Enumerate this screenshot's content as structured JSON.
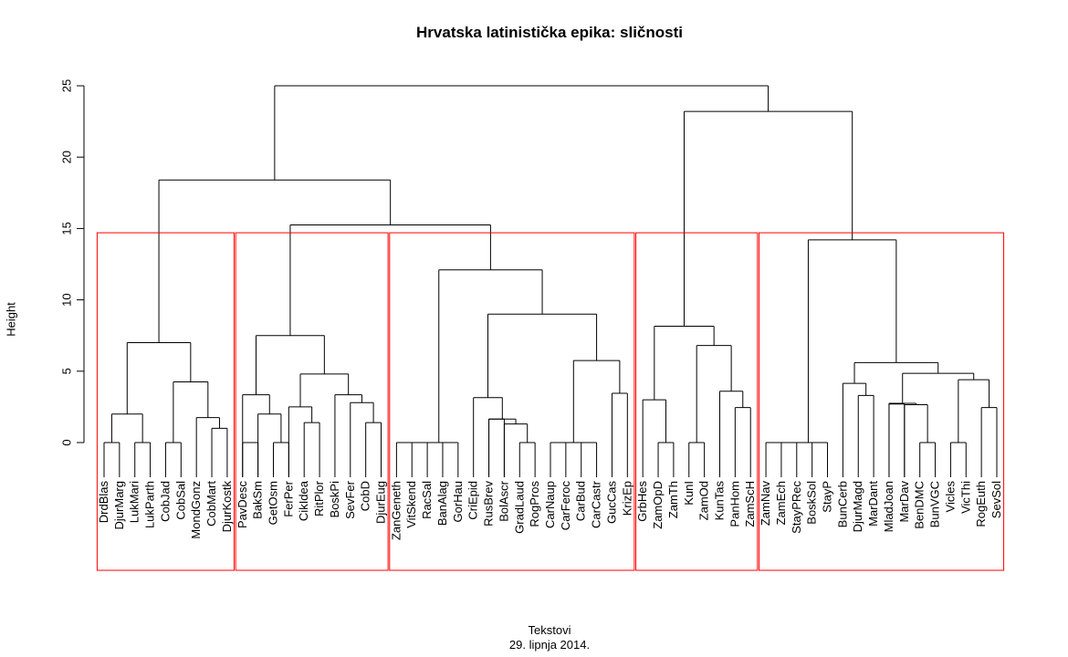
{
  "chart_data": {
    "type": "dendrogram",
    "title": "Hrvatska latinistička epika: sličnosti",
    "xlabel": "Tekstovi",
    "subtitle": "29. lipnja 2014.",
    "ylabel": "Height",
    "ylim": [
      0,
      25
    ],
    "yticks": [
      0,
      5,
      10,
      15,
      20,
      25
    ],
    "highlight_color": "#ff0000",
    "line_color": "#000000",
    "leaves": [
      "DrdBlas",
      "DjurMarg",
      "LukMari",
      "LukParth",
      "CobJad",
      "CobSal",
      "MondGonz",
      "CobMart",
      "DjurKostk",
      "PavDesc",
      "BakSm",
      "GetOsm",
      "FerPer",
      "CikIdea",
      "RitPlor",
      "BoskPi",
      "SevFer",
      "CobD",
      "DjurEug",
      "ZanGeneth",
      "VitSkend",
      "RacSal",
      "BanAlag",
      "GorHau",
      "CriEpid",
      "RusBrev",
      "BolAscr",
      "GradLaud",
      "RogPros",
      "CarNaup",
      "CarFeroc",
      "CarBud",
      "CarCastr",
      "GucCas",
      "KrizEp",
      "GrbHes",
      "ZamOpD",
      "ZamTh",
      "KunI",
      "ZamOd",
      "KunTas",
      "PanHom",
      "ZamScH",
      "ZamNav",
      "ZamEch",
      "StayPRec",
      "BoskSol",
      "StayP",
      "BunCerb",
      "DjurMagd",
      "MarDant",
      "MladJoan",
      "MarDav",
      "BenDMC",
      "BunVGC",
      "Vicles",
      "VicThi",
      "RogEuth",
      "SevSol"
    ],
    "merges": [
      {
        "a": "DrdBlas",
        "b": "DjurMarg",
        "height": 0.0
      },
      {
        "a": "LukMari",
        "b": "LukParth",
        "height": 0.0
      },
      {
        "a": "1",
        "b": "2",
        "height": 2.0
      },
      {
        "a": "CobJad",
        "b": "CobSal",
        "height": 0.0
      },
      {
        "a": "CobMart",
        "b": "DjurKostk",
        "height": 1.0
      },
      {
        "a": "MondGonz",
        "b": "5",
        "height": 1.75
      },
      {
        "a": "4",
        "b": "6",
        "height": 4.25
      },
      {
        "a": "3",
        "b": "7",
        "height": 7.0
      },
      {
        "a": "PavDesc",
        "b": "BakSm",
        "height": 0.0
      },
      {
        "a": "GetOsm",
        "b": "FerPer",
        "height": 0.0
      },
      {
        "a": "9",
        "b": "10",
        "height": 2.0
      },
      {
        "a": "CikIdea",
        "b": "RitPlor",
        "height": 0.0
      },
      {
        "a": "BoskPi",
        "b": "SevFer",
        "height": 0.0
      },
      {
        "a": "CobD",
        "b": "DjurEug",
        "height": 0.0
      },
      {
        "a": "13",
        "b": "14",
        "height": 1.4
      },
      {
        "a": "12",
        "b": "15",
        "height": 2.5
      },
      {
        "a": "11",
        "b": "16",
        "height": 3.35
      },
      {
        "a": "17",
        "b": "18",
        "height": 2.8
      },
      {
        "a": "17",
        "b": "19",
        "height": 4.8
      },
      {
        "a": "20",
        "b": "21",
        "height": 7.5
      },
      {
        "a": "ZanGeneth",
        "b": "VitSkend",
        "height": 0.0
      },
      {
        "a": "RacSal",
        "b": "BanAlag",
        "height": 0.0
      },
      {
        "a": "GorHau",
        "b": "CriEpid",
        "height": 0.0
      },
      {
        "a": "RusBrev",
        "b": "BolAscr",
        "height": 1.65
      },
      {
        "a": "GradLaud",
        "b": "RogPros",
        "height": 0.0
      },
      {
        "a": "CarNaup",
        "b": "CarFeroc",
        "height": 0.0
      },
      {
        "a": "CarBud",
        "b": "CarCastr",
        "height": 0.0
      },
      {
        "a": "GucCas",
        "b": "KrizEp",
        "height": 3.45
      },
      {
        "a": "GrbHes",
        "b": "ZamOpD",
        "height": 3.0
      },
      {
        "a": "ZamTh",
        "b": "KunI",
        "height": 0.0
      },
      {
        "a": "KunTas",
        "b": "PanHom",
        "height": 2.45
      },
      {
        "a": "ZamOd",
        "b": "ZamScH",
        "height": 3.6
      },
      {
        "a": "ZamNav",
        "b": "ZamEch",
        "height": 0.0
      },
      {
        "a": "StayPRec",
        "b": "BoskSol",
        "height": 0.0
      },
      {
        "a": "BenDMC",
        "b": "BunVGC",
        "height": 0.0
      },
      {
        "a": "Vicles",
        "b": "VicThi",
        "height": 0.0
      },
      {
        "a": "RogEuth",
        "b": "SevSol",
        "height": 2.45
      }
    ],
    "clusters": [
      {
        "first": "DrdBlas",
        "last": "DjurKostk"
      },
      {
        "first": "PavDesc",
        "last": "DjurEug"
      },
      {
        "first": "ZanGeneth",
        "last": "KrizEp"
      },
      {
        "first": "GrbHes",
        "last": "ZamScH"
      },
      {
        "first": "ZamNav",
        "last": "SevSol"
      }
    ],
    "cut_height": 14.7
  }
}
